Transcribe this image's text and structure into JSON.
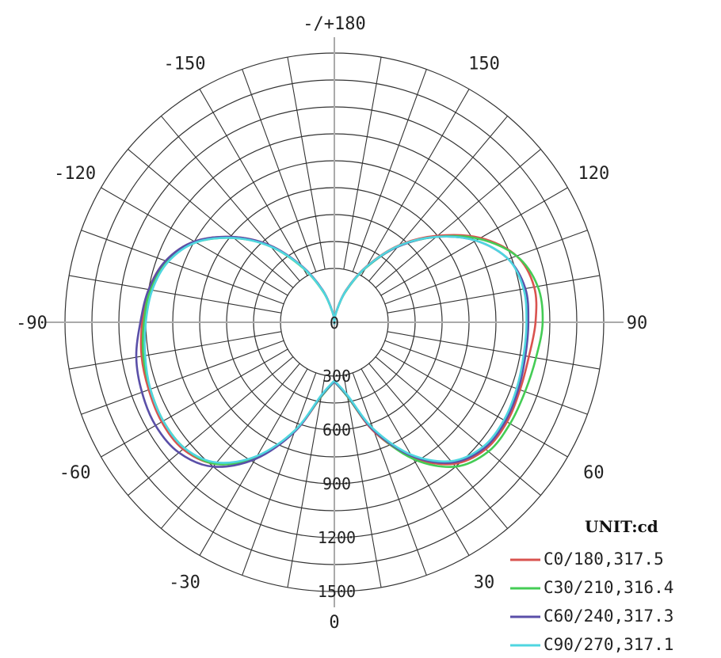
{
  "chart_data": {
    "type": "polar",
    "unit_label": "UNIT:cd",
    "r_max": 1500,
    "radial_ticks": [
      300,
      600,
      900,
      1200,
      1500
    ],
    "radial_tick_labels": [
      "300",
      "600",
      "900",
      "1200",
      "1500"
    ],
    "angle_tick_labels": [
      {
        "angle": 180,
        "label": "-/+180"
      },
      {
        "angle": -150,
        "label": "-150"
      },
      {
        "angle": 150,
        "label": "150"
      },
      {
        "angle": -120,
        "label": "-120"
      },
      {
        "angle": 120,
        "label": "120"
      },
      {
        "angle": -90,
        "label": "-90"
      },
      {
        "angle": 90,
        "label": "90"
      },
      {
        "angle": -60,
        "label": "-60"
      },
      {
        "angle": 60,
        "label": "60"
      },
      {
        "angle": -30,
        "label": "-30"
      },
      {
        "angle": 30,
        "label": "30"
      },
      {
        "angle": 0,
        "label": "0"
      }
    ],
    "center_label": "0",
    "grid": true,
    "legend_position": "bottom-right",
    "angles": [
      0,
      10,
      20,
      30,
      40,
      50,
      60,
      70,
      80,
      90,
      100,
      110,
      120,
      130,
      140,
      150,
      160,
      170,
      180
    ],
    "series": [
      {
        "name": "C0/180,317.5",
        "color": "#d9534f",
        "right": [
          330,
          420,
          650,
          870,
          1030,
          1100,
          1110,
          1100,
          1100,
          1120,
          1130,
          1080,
          940,
          750,
          560,
          360,
          190,
          60,
          0
        ],
        "left": [
          330,
          420,
          650,
          870,
          1030,
          1100,
          1110,
          1100,
          1090,
          1070,
          1050,
          1000,
          900,
          740,
          560,
          360,
          190,
          60,
          0
        ]
      },
      {
        "name": "C30/210,316.4",
        "color": "#44cc55",
        "right": [
          330,
          420,
          640,
          880,
          1050,
          1120,
          1130,
          1130,
          1140,
          1160,
          1150,
          1080,
          930,
          740,
          550,
          350,
          180,
          55,
          0
        ],
        "left": [
          330,
          420,
          640,
          870,
          1030,
          1090,
          1100,
          1090,
          1080,
          1060,
          1040,
          990,
          890,
          730,
          550,
          350,
          180,
          55,
          0
        ]
      },
      {
        "name": "C60/240,317.3",
        "color": "#5a4fa8",
        "right": [
          330,
          415,
          640,
          860,
          1020,
          1090,
          1100,
          1090,
          1080,
          1080,
          1080,
          1030,
          910,
          740,
          550,
          355,
          185,
          58,
          0
        ],
        "left": [
          330,
          415,
          650,
          880,
          1050,
          1130,
          1150,
          1140,
          1120,
          1080,
          1050,
          1000,
          900,
          740,
          560,
          360,
          190,
          60,
          0
        ]
      },
      {
        "name": "C90/270,317.1",
        "color": "#4fd6e0",
        "right": [
          325,
          410,
          630,
          850,
          1010,
          1080,
          1090,
          1080,
          1070,
          1070,
          1070,
          1030,
          910,
          740,
          555,
          355,
          185,
          58,
          0
        ],
        "left": [
          325,
          410,
          640,
          860,
          1020,
          1090,
          1100,
          1090,
          1070,
          1050,
          1030,
          985,
          890,
          730,
          550,
          355,
          185,
          58,
          0
        ]
      }
    ]
  }
}
